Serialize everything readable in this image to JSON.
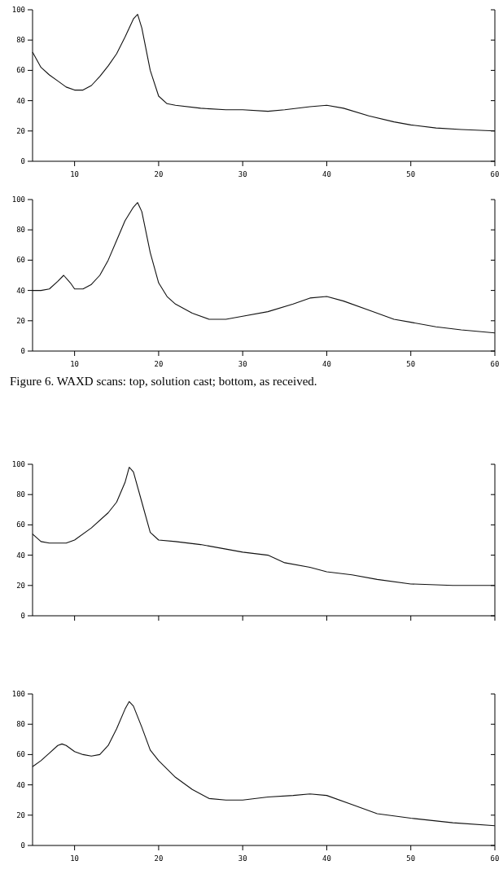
{
  "chart_data": [
    {
      "type": "line",
      "xlim": [
        5,
        60
      ],
      "ylim": [
        0,
        100
      ],
      "xticks": [
        10,
        20,
        30,
        40,
        50,
        60
      ],
      "yticks": [
        0,
        20,
        40,
        60,
        80,
        100
      ],
      "series": [
        {
          "color": "#111111",
          "x": [
            5,
            6,
            7,
            8,
            9,
            10,
            11,
            12,
            13,
            14,
            15,
            16,
            17,
            17.5,
            18,
            19,
            20,
            21,
            22,
            25,
            28,
            30,
            33,
            35,
            38,
            40,
            42,
            45,
            48,
            50,
            53,
            56,
            60
          ],
          "values": [
            72,
            62,
            57,
            53,
            49,
            47,
            47,
            50,
            56,
            63,
            71,
            82,
            94,
            97,
            88,
            60,
            43,
            38,
            37,
            35,
            34,
            34,
            33,
            34,
            36,
            37,
            35,
            30,
            26,
            24,
            22,
            21,
            20
          ]
        }
      ]
    },
    {
      "type": "line",
      "xlim": [
        5,
        60
      ],
      "ylim": [
        0,
        100
      ],
      "xticks": [
        10,
        20,
        30,
        40,
        50,
        60
      ],
      "yticks": [
        0,
        20,
        40,
        60,
        80,
        100
      ],
      "annotations": [
        "Figure 6. WAXD scans: top, solution cast; bottom, as received."
      ],
      "series": [
        {
          "color": "#111111",
          "x": [
            5,
            6,
            7,
            8,
            8.7,
            9.5,
            10,
            11,
            12,
            13,
            14,
            15,
            16,
            17,
            17.5,
            18,
            19,
            20,
            21,
            22,
            24,
            26,
            28,
            30,
            33,
            36,
            38,
            40,
            42,
            45,
            48,
            50,
            53,
            56,
            60
          ],
          "values": [
            40,
            40,
            41,
            46,
            50,
            45,
            41,
            41,
            44,
            50,
            60,
            73,
            86,
            95,
            98,
            92,
            65,
            45,
            36,
            31,
            25,
            21,
            21,
            23,
            26,
            31,
            35,
            36,
            33,
            27,
            21,
            19,
            16,
            14,
            12
          ]
        }
      ]
    },
    {
      "type": "line",
      "xlim": [
        5,
        60
      ],
      "ylim": [
        0,
        100
      ],
      "xticks": [
        {
          "value": 10,
          "label": null
        },
        {
          "value": 20,
          "label": null
        },
        {
          "value": 30,
          "label": null
        },
        {
          "value": 40,
          "label": null
        },
        {
          "value": 50,
          "label": null
        },
        {
          "value": 60,
          "label": null
        }
      ],
      "yticks": [
        0,
        20,
        40,
        60,
        80,
        100
      ],
      "tick_labels": "y",
      "series": [
        {
          "color": "#111111",
          "x": [
            5,
            6,
            7,
            9,
            10,
            12,
            14,
            15,
            16,
            16.5,
            17,
            18,
            19,
            20,
            22,
            25,
            28,
            30,
            33,
            35,
            38,
            40,
            43,
            46,
            50,
            55,
            60
          ],
          "values": [
            54,
            49,
            48,
            48,
            50,
            58,
            68,
            75,
            88,
            98,
            95,
            75,
            55,
            50,
            49,
            47,
            44,
            42,
            40,
            35,
            32,
            29,
            27,
            24,
            21,
            20,
            20
          ]
        }
      ]
    },
    {
      "type": "line",
      "xlim": [
        5,
        60
      ],
      "ylim": [
        0,
        100
      ],
      "xticks": [
        10,
        20,
        30,
        40,
        50,
        60
      ],
      "yticks": [
        0,
        20,
        40,
        60,
        80,
        100
      ],
      "series": [
        {
          "color": "#111111",
          "x": [
            5,
            6,
            7,
            8,
            8.5,
            9,
            10,
            11,
            12,
            13,
            14,
            15,
            16,
            16.5,
            17,
            18,
            19,
            20,
            22,
            24,
            26,
            28,
            30,
            33,
            36,
            38,
            40,
            43,
            46,
            50,
            55,
            60
          ],
          "values": [
            52,
            56,
            61,
            66,
            67,
            66,
            62,
            60,
            59,
            60,
            66,
            77,
            90,
            95,
            92,
            78,
            63,
            56,
            45,
            37,
            31,
            30,
            30,
            32,
            33,
            34,
            33,
            27,
            21,
            18,
            15,
            13
          ]
        }
      ]
    }
  ]
}
